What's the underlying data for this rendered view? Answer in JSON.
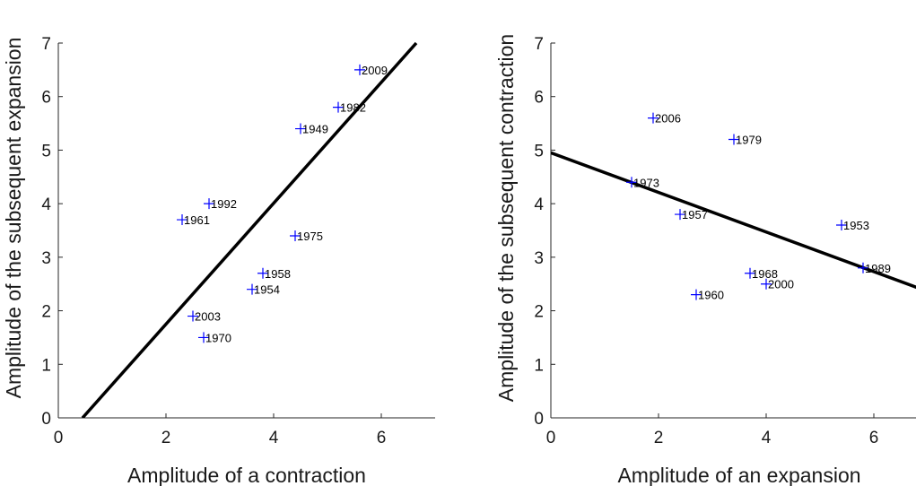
{
  "colors": {
    "marker": "#0000ff",
    "fit_line": "#000000",
    "axis": "#262626"
  },
  "chart_data": [
    {
      "type": "scatter",
      "title": "",
      "xlabel": "Amplitude of a contraction",
      "ylabel": "Amplitude of the subsequent expansion",
      "xlim": [
        0,
        7
      ],
      "ylim": [
        0,
        7
      ],
      "xticks": [
        0,
        2,
        4,
        6
      ],
      "yticks": [
        0,
        1,
        2,
        3,
        4,
        5,
        6,
        7
      ],
      "grid": false,
      "legend": "none",
      "marker": "plus",
      "points": [
        {
          "x": 5.6,
          "y": 6.5,
          "label": "2009"
        },
        {
          "x": 5.2,
          "y": 5.8,
          "label": "1982"
        },
        {
          "x": 4.5,
          "y": 5.4,
          "label": "1949"
        },
        {
          "x": 2.8,
          "y": 4.0,
          "label": "1992"
        },
        {
          "x": 2.3,
          "y": 3.7,
          "label": "1961"
        },
        {
          "x": 4.4,
          "y": 3.4,
          "label": "1975"
        },
        {
          "x": 3.8,
          "y": 2.7,
          "label": "1958"
        },
        {
          "x": 3.6,
          "y": 2.4,
          "label": "1954"
        },
        {
          "x": 2.5,
          "y": 1.9,
          "label": "2003"
        },
        {
          "x": 2.7,
          "y": 1.5,
          "label": "1970"
        }
      ],
      "fit_line": {
        "x": [
          0.45,
          6.65
        ],
        "y": [
          0.0,
          7.0
        ]
      }
    },
    {
      "type": "scatter",
      "title": "",
      "xlabel": "Amplitude of an expansion",
      "ylabel": "Amplitude of the subsequent contraction",
      "xlim": [
        0,
        7
      ],
      "ylim": [
        0,
        7
      ],
      "xticks": [
        0,
        2,
        4,
        6
      ],
      "yticks": [
        0,
        1,
        2,
        3,
        4,
        5,
        6,
        7
      ],
      "grid": false,
      "legend": "none",
      "marker": "plus",
      "points": [
        {
          "x": 1.9,
          "y": 5.6,
          "label": "2006"
        },
        {
          "x": 3.4,
          "y": 5.2,
          "label": "1979"
        },
        {
          "x": 1.5,
          "y": 4.4,
          "label": "1973"
        },
        {
          "x": 2.4,
          "y": 3.8,
          "label": "1957"
        },
        {
          "x": 5.4,
          "y": 3.6,
          "label": "1953"
        },
        {
          "x": 5.8,
          "y": 2.8,
          "label": "1989"
        },
        {
          "x": 3.7,
          "y": 2.7,
          "label": "1968"
        },
        {
          "x": 4.0,
          "y": 2.5,
          "label": "2000"
        },
        {
          "x": 2.7,
          "y": 2.3,
          "label": "1960"
        }
      ],
      "fit_line": {
        "x": [
          0.0,
          6.95
        ],
        "y": [
          4.95,
          2.38
        ]
      }
    }
  ]
}
